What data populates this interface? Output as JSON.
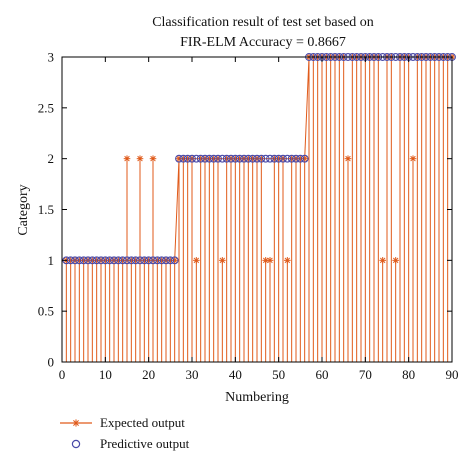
{
  "chart_data": {
    "type": "scatter",
    "title_line1": "Classification result of test set based on",
    "title_line2": "FIR-ELM Accuracy = 0.8667",
    "xlabel": "Numbering",
    "ylabel": "Category",
    "xlim": [
      0,
      90
    ],
    "ylim": [
      0,
      3
    ],
    "xticks": [
      0,
      10,
      20,
      30,
      40,
      50,
      60,
      70,
      80,
      90
    ],
    "yticks": [
      0,
      0.5,
      1,
      1.5,
      2,
      2.5,
      3
    ],
    "xtick_labels": [
      "0",
      "10",
      "20",
      "30",
      "40",
      "50",
      "60",
      "70",
      "80",
      "90"
    ],
    "ytick_labels": [
      "0",
      "0.5",
      "1",
      "1.5",
      "2",
      "2.5",
      "3"
    ],
    "grid": false,
    "legend_position": "below",
    "colors": {
      "expected": "#e05a1a",
      "predictive": "#4a4aa8"
    },
    "x": [
      1,
      2,
      3,
      4,
      5,
      6,
      7,
      8,
      9,
      10,
      11,
      12,
      13,
      14,
      15,
      16,
      17,
      18,
      19,
      20,
      21,
      22,
      23,
      24,
      25,
      26,
      27,
      28,
      29,
      30,
      31,
      32,
      33,
      34,
      35,
      36,
      37,
      38,
      39,
      40,
      41,
      42,
      43,
      44,
      45,
      46,
      47,
      48,
      49,
      50,
      51,
      52,
      53,
      54,
      55,
      56,
      57,
      58,
      59,
      60,
      61,
      62,
      63,
      64,
      65,
      66,
      67,
      68,
      69,
      70,
      71,
      72,
      73,
      74,
      75,
      76,
      77,
      78,
      79,
      80,
      81,
      82,
      83,
      84,
      85,
      86,
      87,
      88,
      89,
      90
    ],
    "series": [
      {
        "name": "Expected output",
        "values": [
          1,
          1,
          1,
          1,
          1,
          1,
          1,
          1,
          1,
          1,
          1,
          1,
          1,
          1,
          2,
          1,
          1,
          2,
          1,
          1,
          2,
          1,
          1,
          1,
          1,
          1,
          2,
          2,
          2,
          2,
          1,
          2,
          2,
          2,
          2,
          2,
          1,
          2,
          2,
          2,
          2,
          2,
          2,
          2,
          2,
          2,
          1,
          1,
          2,
          2,
          2,
          1,
          2,
          2,
          2,
          2,
          3,
          3,
          3,
          3,
          3,
          3,
          3,
          3,
          3,
          2,
          3,
          3,
          3,
          3,
          3,
          3,
          3,
          1,
          3,
          3,
          1,
          3,
          3,
          3,
          2,
          3,
          3,
          3,
          3,
          3,
          3,
          3,
          3,
          3
        ]
      },
      {
        "name": "Predictive output",
        "values": [
          1,
          1,
          1,
          1,
          1,
          1,
          1,
          1,
          1,
          1,
          1,
          1,
          1,
          1,
          1,
          1,
          1,
          1,
          1,
          1,
          1,
          1,
          1,
          1,
          1,
          1,
          2,
          2,
          2,
          2,
          2,
          2,
          2,
          2,
          2,
          2,
          2,
          2,
          2,
          2,
          2,
          2,
          2,
          2,
          2,
          2,
          2,
          2,
          2,
          2,
          2,
          2,
          2,
          2,
          2,
          2,
          3,
          3,
          3,
          3,
          3,
          3,
          3,
          3,
          3,
          3,
          3,
          3,
          3,
          3,
          3,
          3,
          3,
          3,
          3,
          3,
          3,
          3,
          3,
          3,
          3,
          3,
          3,
          3,
          3,
          3,
          3,
          3,
          3,
          3
        ]
      }
    ]
  }
}
